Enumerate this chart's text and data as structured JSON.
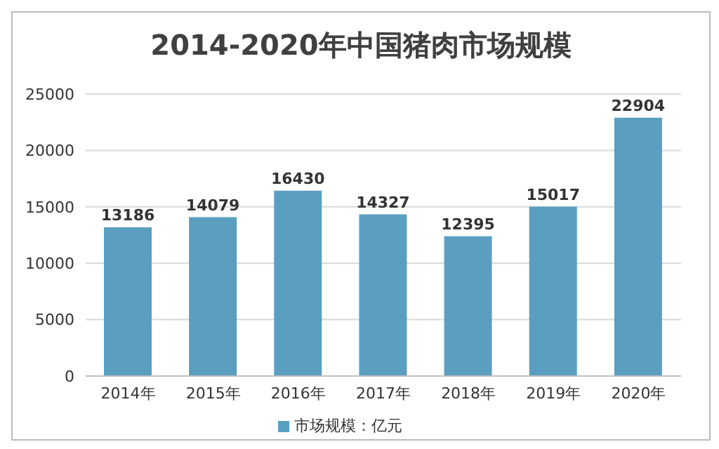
{
  "chart_data": {
    "type": "bar",
    "title": "2014-2020年中国猪肉市场规模",
    "categories": [
      "2014年",
      "2015年",
      "2016年",
      "2017年",
      "2018年",
      "2019年",
      "2020年"
    ],
    "series": [
      {
        "name": "市场规模：亿元",
        "color": "#5a9fc0",
        "values": [
          13186,
          14079,
          16430,
          14327,
          12395,
          15017,
          22904
        ]
      }
    ],
    "ylim": [
      0,
      25000
    ],
    "yticks": [
      0,
      5000,
      10000,
      15000,
      20000,
      25000
    ],
    "grid": "y",
    "legend": "bottom",
    "data_labels": true
  }
}
